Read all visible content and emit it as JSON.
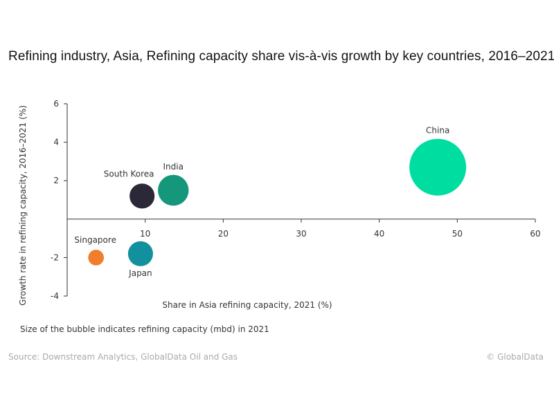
{
  "chart_data": {
    "type": "scatter",
    "title": "Refining industry, Asia, Refining capacity share vis-à-vis growth by key countries, 2016–2021",
    "xlabel": "Share in Asia refining capacity, 2021 (%)",
    "ylabel": "Growth rate in refining capacity, 2016–2021 (%)",
    "xlim": [
      0,
      60
    ],
    "ylim": [
      -4,
      6
    ],
    "xticks": [
      "10",
      "20",
      "30",
      "40",
      "50",
      "60"
    ],
    "yticks": [
      "6",
      "4",
      "2",
      "-2",
      "-4"
    ],
    "grid": false,
    "size_note": "Size of the bubble indicates refining capacity (mbd) in 2021",
    "points": [
      {
        "name": "China",
        "x": 47.5,
        "y": 2.7,
        "size": 17,
        "color": "#00DDA0",
        "label_pos": "above"
      },
      {
        "name": "India",
        "x": 13.6,
        "y": 1.5,
        "size": 5,
        "color": "#15977B",
        "label_pos": "above"
      },
      {
        "name": "South Korea",
        "x": 9.6,
        "y": 1.2,
        "size": 3.3,
        "color": "#2B2838",
        "label_pos": "above-left"
      },
      {
        "name": "Japan",
        "x": 9.4,
        "y": -1.8,
        "size": 3.3,
        "color": "#13909E",
        "label_pos": "below"
      },
      {
        "name": "Singapore",
        "x": 3.7,
        "y": -2.0,
        "size": 1.3,
        "color": "#F07E2A",
        "label_pos": "above-left"
      }
    ]
  },
  "footer": {
    "source": "Source: Downstream Analytics, GlobalData Oil and Gas",
    "copyright": "© GlobalData"
  }
}
